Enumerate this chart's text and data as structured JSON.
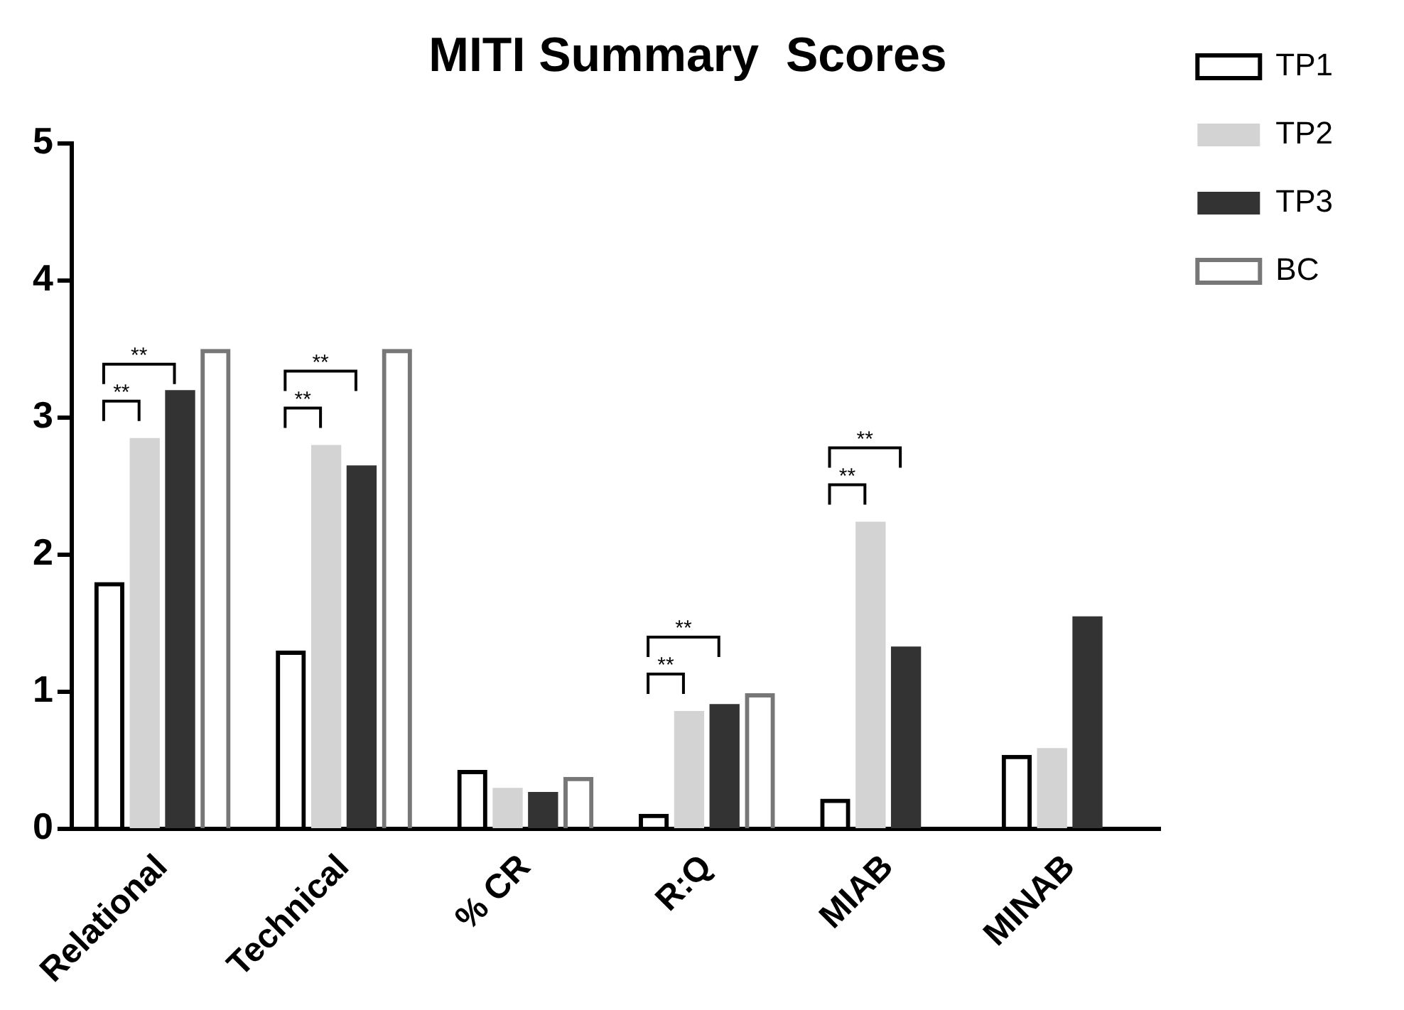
{
  "chart_data": {
    "type": "bar",
    "title": "MITI Summary  Scores",
    "categories": [
      "Relational",
      "Technical",
      "% CR",
      "R:Q",
      "MIAB",
      "MINAB"
    ],
    "series": [
      {
        "name": "TP1",
        "color": "#000000",
        "values": [
          1.8,
          1.3,
          0.43,
          0.11,
          0.22,
          0.54
        ]
      },
      {
        "name": "TP2",
        "color": "#d3d3d3",
        "values": [
          2.85,
          2.8,
          0.3,
          0.86,
          2.24,
          0.59
        ]
      },
      {
        "name": "TP3",
        "color": "#333333",
        "values": [
          3.2,
          2.65,
          0.27,
          0.91,
          1.33,
          1.55
        ]
      },
      {
        "name": "BC",
        "color": "#777777",
        "values": [
          3.5,
          3.5,
          0.38,
          0.99,
          null,
          null
        ]
      }
    ],
    "ylim": [
      0,
      5
    ],
    "yticks": [
      0,
      1,
      2,
      3,
      4,
      5
    ],
    "grid": false,
    "legend": "top right",
    "annotations": [
      "**",
      "**",
      "**",
      "**",
      "**",
      "**",
      "**",
      "**"
    ]
  }
}
